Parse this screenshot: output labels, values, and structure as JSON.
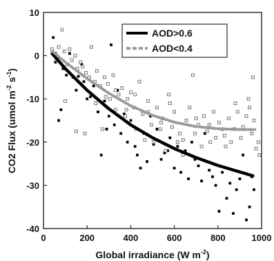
{
  "chart_data": {
    "type": "scatter",
    "xlim": [
      0,
      1000
    ],
    "ylim": [
      -40,
      10
    ],
    "xticks": [
      0,
      200,
      400,
      600,
      800,
      1000
    ],
    "yticks": [
      -40,
      -30,
      -20,
      -10,
      0,
      10
    ],
    "xtick_labels": [
      "0",
      "200",
      "400",
      "600",
      "800",
      "1000"
    ],
    "ytick_labels": [
      "-40",
      "-30",
      "-20",
      "-10",
      "0",
      "10"
    ],
    "xlabel": {
      "main": "Global irradiance (W m",
      "sup": "-2",
      "end": ")"
    },
    "ylabel": {
      "p1": "CO2 Flux (umol m",
      "sup1": "-2",
      "p2": " s",
      "sup2": "-1",
      "end": ")"
    },
    "grid": false,
    "legend": {
      "position": "top-right",
      "entries": [
        {
          "label": "AOD>0.6",
          "style": "solid",
          "color": "#000000"
        },
        {
          "label": "AOD<0.4",
          "style": "dashed",
          "color": "#9a9a9a"
        }
      ]
    },
    "series": [
      {
        "name": "AOD>0.6",
        "kind": "fit",
        "color": "#000000",
        "x": [
          40,
          100,
          200,
          300,
          400,
          500,
          600,
          700,
          800,
          900,
          960
        ],
        "y": [
          0.5,
          -3.0,
          -8.0,
          -12.3,
          -16.0,
          -19.0,
          -21.5,
          -23.6,
          -25.4,
          -26.9,
          -27.8
        ]
      },
      {
        "name": "AOD<0.4",
        "kind": "fit",
        "color": "#9a9a9a",
        "x": [
          40,
          100,
          200,
          300,
          400,
          500,
          600,
          700,
          800,
          900,
          970
        ],
        "y": [
          1.0,
          -1.5,
          -5.3,
          -8.7,
          -11.6,
          -13.8,
          -15.4,
          -16.4,
          -16.9,
          -17.1,
          -17.1
        ]
      },
      {
        "name": "AOD>0.6",
        "kind": "points",
        "marker": "filled-square",
        "color": "#000000",
        "x": [
          45,
          55,
          70,
          80,
          90,
          105,
          120,
          135,
          150,
          160,
          175,
          185,
          200,
          215,
          230,
          250,
          265,
          280,
          290,
          300,
          310,
          325,
          340,
          355,
          370,
          385,
          400,
          420,
          430,
          445,
          460,
          475,
          490,
          505,
          520,
          540,
          555,
          570,
          580,
          600,
          615,
          630,
          650,
          665,
          680,
          695,
          710,
          725,
          740,
          760,
          775,
          790,
          805,
          820,
          840,
          855,
          870,
          885,
          900,
          915,
          930,
          945,
          955,
          965
        ],
        "y": [
          4.2,
          -1.5,
          -15.0,
          -12.5,
          -3.0,
          -4.5,
          0.5,
          -5.0,
          -8.0,
          -4.8,
          -2.0,
          -6.0,
          -10.0,
          -9.5,
          -7.0,
          -13.0,
          -23.0,
          -10.5,
          -17.0,
          -14.0,
          2.5,
          -16.0,
          -8.0,
          -18.0,
          -13.5,
          -20.0,
          -15.0,
          -21.0,
          -23.0,
          -26.0,
          -18.0,
          -24.5,
          -14.0,
          -20.5,
          -17.0,
          -24.0,
          -22.5,
          -22.0,
          -19.0,
          -26.0,
          -21.0,
          -27.0,
          -22.0,
          -28.5,
          -20.0,
          -24.0,
          -25.5,
          -29.0,
          -18.0,
          -26.5,
          -28.0,
          -30.0,
          -36.0,
          -27.0,
          -33.0,
          -29.5,
          -36.5,
          -31.0,
          -28.5,
          -23.0,
          -38.0,
          -35.0,
          -28.0,
          -31.0
        ]
      },
      {
        "name": "AOD<0.4",
        "kind": "points",
        "marker": "open-square",
        "color": "#555555",
        "x": [
          40,
          55,
          70,
          85,
          95,
          110,
          120,
          130,
          145,
          155,
          170,
          180,
          195,
          210,
          220,
          235,
          245,
          260,
          270,
          285,
          295,
          305,
          320,
          330,
          345,
          360,
          375,
          385,
          400,
          415,
          425,
          440,
          455,
          465,
          480,
          495,
          505,
          520,
          535,
          545,
          560,
          575,
          590,
          600,
          615,
          625,
          640,
          655,
          670,
          685,
          695,
          710,
          725,
          735,
          750,
          765,
          780,
          790,
          805,
          820,
          835,
          850,
          860,
          875,
          890,
          905,
          915,
          930,
          945,
          955,
          965,
          975,
          985,
          990,
          940,
          960,
          880,
          830,
          760,
          700,
          640,
          580,
          540,
          480,
          420,
          380,
          330,
          280,
          240,
          190,
          150,
          100,
          60
        ],
        "y": [
          1.5,
          0.5,
          2.0,
          6.0,
          1.0,
          -2.0,
          1.5,
          -1.0,
          0.0,
          -3.0,
          -1.5,
          -2.5,
          -4.0,
          -5.0,
          2.0,
          -6.0,
          -3.5,
          -7.0,
          -17.0,
          -9.5,
          -6.5,
          -10.0,
          -4.5,
          -12.5,
          -9.0,
          -7.5,
          -14.0,
          -10.0,
          -8.5,
          -12.0,
          -17.0,
          -6.0,
          -13.5,
          -19.5,
          -10.5,
          -16.0,
          -20.0,
          -12.0,
          -17.0,
          -14.5,
          -22.0,
          -9.0,
          -16.5,
          -13.0,
          -20.0,
          -18.0,
          -23.0,
          -15.0,
          -12.0,
          -4.5,
          -18.0,
          -16.0,
          -21.0,
          -14.0,
          -17.5,
          -20.0,
          -13.0,
          -19.0,
          -15.5,
          -17.0,
          -21.0,
          -14.5,
          -20.0,
          -17.0,
          -13.0,
          -19.0,
          -16.5,
          -14.0,
          -12.0,
          -18.0,
          -15.0,
          -21.5,
          -20.0,
          -23.0,
          -10.0,
          -5.0,
          -11.0,
          -18.5,
          -16.0,
          -14.5,
          -19.5,
          -11.0,
          -15.5,
          -13.0,
          -9.0,
          -12.5,
          -8.0,
          -5.0,
          -11.0,
          -18.0,
          -17.5,
          -10.5,
          -1.0
        ]
      }
    ]
  }
}
